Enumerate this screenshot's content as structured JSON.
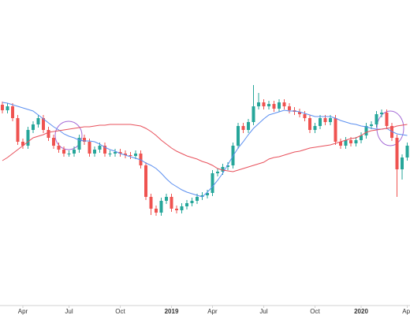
{
  "chart_data": {
    "type": "candlestick",
    "categories": [
      null,
      null,
      null,
      null,
      "Apr",
      null,
      null,
      null,
      null,
      null,
      null,
      null,
      null,
      "Jul",
      null,
      null,
      null,
      null,
      null,
      null,
      null,
      null,
      null,
      "Oct",
      null,
      null,
      null,
      null,
      null,
      null,
      null,
      null,
      null,
      "2019",
      null,
      null,
      null,
      null,
      null,
      null,
      null,
      "Apr",
      null,
      null,
      null,
      null,
      null,
      null,
      null,
      null,
      null,
      "Jul",
      null,
      null,
      null,
      null,
      null,
      null,
      null,
      null,
      null,
      "Oct",
      null,
      null,
      null,
      null,
      null,
      null,
      null,
      null,
      "2020",
      null,
      null,
      null,
      null,
      null,
      null,
      null,
      null,
      "Apr"
    ],
    "open": [
      255,
      248,
      253,
      238,
      208,
      203,
      223,
      230,
      238,
      223,
      213,
      203,
      198,
      193,
      193,
      198,
      213,
      208,
      193,
      198,
      203,
      193,
      193,
      195,
      193,
      191,
      190,
      193,
      178,
      138,
      123,
      118,
      133,
      138,
      123,
      121,
      126,
      130,
      133,
      138,
      140,
      143,
      168,
      170,
      176,
      178,
      203,
      228,
      223,
      233,
      253,
      258,
      253,
      256,
      250,
      258,
      253,
      248,
      246,
      243,
      238,
      223,
      228,
      238,
      233,
      238,
      208,
      203,
      210,
      206,
      210,
      216,
      228,
      230,
      243,
      245,
      228,
      213,
      173,
      188
    ],
    "high": [
      259,
      257,
      257,
      242,
      212,
      227,
      234,
      242,
      242,
      227,
      217,
      207,
      202,
      197,
      202,
      217,
      217,
      212,
      202,
      207,
      207,
      197,
      199,
      199,
      197,
      195,
      197,
      197,
      182,
      142,
      127,
      137,
      142,
      142,
      127,
      130,
      134,
      137,
      142,
      144,
      147,
      172,
      174,
      180,
      182,
      207,
      232,
      232,
      237,
      280,
      270,
      262,
      260,
      260,
      262,
      262,
      257,
      252,
      250,
      247,
      242,
      232,
      242,
      242,
      242,
      242,
      212,
      214,
      214,
      214,
      220,
      232,
      234,
      247,
      249,
      249,
      232,
      217,
      192,
      207
    ],
    "low": [
      244,
      244,
      234,
      204,
      199,
      199,
      219,
      226,
      219,
      209,
      199,
      194,
      189,
      189,
      189,
      194,
      204,
      189,
      189,
      194,
      189,
      189,
      189,
      189,
      187,
      186,
      186,
      174,
      134,
      115,
      114,
      114,
      129,
      119,
      117,
      117,
      122,
      126,
      129,
      134,
      136,
      139,
      164,
      166,
      172,
      174,
      199,
      219,
      219,
      229,
      249,
      249,
      249,
      246,
      246,
      249,
      244,
      242,
      239,
      234,
      219,
      219,
      224,
      229,
      229,
      204,
      199,
      199,
      202,
      202,
      206,
      212,
      224,
      226,
      239,
      224,
      209,
      138,
      160,
      184
    ],
    "close": [
      248,
      253,
      238,
      208,
      203,
      223,
      230,
      238,
      223,
      213,
      203,
      198,
      193,
      193,
      198,
      213,
      208,
      193,
      198,
      203,
      193,
      193,
      195,
      193,
      191,
      190,
      193,
      178,
      138,
      123,
      118,
      133,
      138,
      123,
      121,
      126,
      130,
      133,
      138,
      140,
      143,
      168,
      170,
      176,
      178,
      203,
      228,
      223,
      233,
      253,
      258,
      253,
      256,
      250,
      258,
      253,
      248,
      246,
      243,
      238,
      223,
      228,
      238,
      233,
      238,
      208,
      203,
      210,
      206,
      210,
      216,
      228,
      230,
      243,
      245,
      228,
      213,
      173,
      188,
      203
    ],
    "up_color": "#26a69a",
    "down_color": "#ef5350",
    "lines": [
      {
        "color": "#5b8ff0",
        "values": [
          258,
          257,
          255,
          253,
          251,
          249,
          247,
          242,
          237,
          232,
          227,
          223,
          218,
          215,
          213,
          210,
          209,
          209,
          208,
          205,
          201,
          198,
          196,
          193,
          191,
          189,
          187,
          185,
          181,
          178,
          174,
          168,
          161,
          155,
          151,
          147,
          144,
          142,
          140,
          138,
          144,
          151,
          159,
          168,
          179,
          190,
          200,
          208,
          217,
          225,
          231,
          237,
          242,
          244,
          246,
          248,
          247,
          247,
          246,
          244,
          242,
          240,
          240,
          240,
          240,
          238,
          235,
          233,
          231,
          230,
          228,
          227,
          225,
          224,
          224,
          225,
          221,
          218,
          217,
          216
        ]
      },
      {
        "color": "#e8505b",
        "values": [
          184,
          188,
          193,
          198,
          203,
          208,
          213,
          215,
          217,
          220,
          221,
          222,
          223,
          224,
          225,
          226,
          227,
          227,
          228,
          229,
          229,
          230,
          230,
          230,
          230,
          230,
          229,
          228,
          225,
          221,
          216,
          210,
          205,
          200,
          196,
          193,
          190,
          188,
          186,
          183,
          181,
          178,
          174,
          172,
          171,
          170,
          172,
          174,
          176,
          178,
          180,
          182,
          186,
          188,
          189,
          191,
          193,
          195,
          196,
          198,
          200,
          201,
          202,
          203,
          204,
          206,
          208,
          210,
          212,
          213,
          216,
          220,
          222,
          223,
          224,
          225,
          226,
          228,
          229,
          230
        ]
      }
    ],
    "ylim": [
      0,
      388
    ]
  }
}
